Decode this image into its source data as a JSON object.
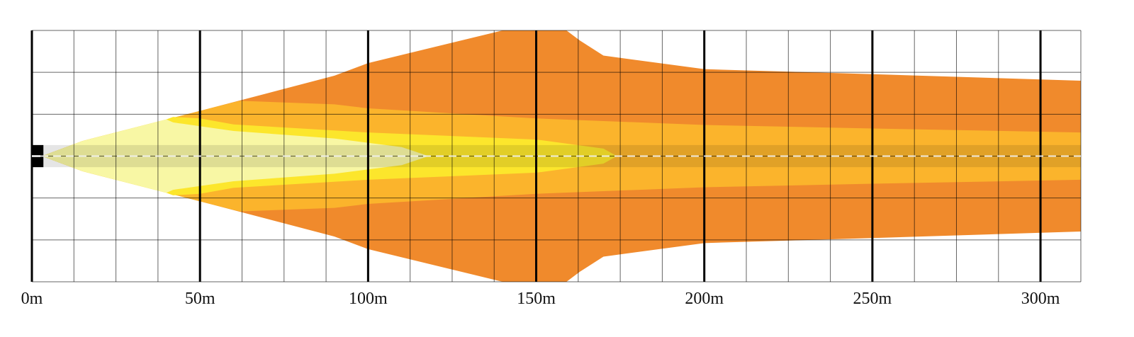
{
  "chart_data": {
    "type": "area",
    "title": "",
    "xlabel": "",
    "ylabel": "",
    "x_unit": "m",
    "xlim": [
      0,
      312
    ],
    "ylim": [
      -25,
      25
    ],
    "x_ticks": [
      {
        "value": 0,
        "label": "0m"
      },
      {
        "value": 50,
        "label": "50m"
      },
      {
        "value": 100,
        "label": "100m"
      },
      {
        "value": 150,
        "label": "150m"
      },
      {
        "value": 200,
        "label": "200m"
      },
      {
        "value": 250,
        "label": "250m"
      },
      {
        "value": 300,
        "label": "300m"
      }
    ],
    "grid": {
      "x_step": 12.5,
      "y_step": 8.33,
      "major_every": 4
    },
    "series": [
      {
        "color": "#F08A2C",
        "reach": 312,
        "profile": [
          [
            3,
            0
          ],
          [
            15,
            3
          ],
          [
            50,
            9
          ],
          [
            90,
            16
          ],
          [
            100,
            18.5
          ],
          [
            140,
            25
          ],
          [
            150,
            25
          ],
          [
            159,
            25
          ],
          [
            163,
            23
          ],
          [
            170,
            20
          ],
          [
            200,
            17.3
          ],
          [
            250,
            16.3
          ],
          [
            312,
            15
          ]
        ]
      },
      {
        "color": "#FBB42C",
        "reach": 312,
        "profile": [
          [
            3,
            0
          ],
          [
            15,
            3
          ],
          [
            50,
            9
          ],
          [
            60,
            10.7
          ],
          [
            62,
            11
          ],
          [
            90,
            10.3
          ],
          [
            100,
            9.5
          ],
          [
            150,
            7.5
          ],
          [
            200,
            6.2
          ],
          [
            250,
            5.5
          ],
          [
            312,
            4.7
          ]
        ]
      },
      {
        "color": "#FCE62C",
        "reach": 174,
        "profile": [
          [
            3,
            0
          ],
          [
            15,
            3
          ],
          [
            40,
            7.3
          ],
          [
            42,
            7.8
          ],
          [
            50,
            7.5
          ],
          [
            60,
            6.3
          ],
          [
            100,
            4.7
          ],
          [
            150,
            3.3
          ],
          [
            170,
            1.5
          ],
          [
            174,
            0
          ]
        ]
      },
      {
        "color": "#F8F7A4",
        "reach": 118,
        "profile": [
          [
            3,
            0
          ],
          [
            15,
            3
          ],
          [
            40,
            7.3
          ],
          [
            42,
            6.7
          ],
          [
            60,
            5
          ],
          [
            90,
            3.5
          ],
          [
            110,
            1.8
          ],
          [
            118,
            0
          ]
        ]
      }
    ],
    "center_band": {
      "half_width": 2.2,
      "color": "#000000",
      "opacity": 0.1
    },
    "mount_bar": {
      "x_start": 0,
      "x_end": 3,
      "half_width": 2.2,
      "color": "#000000"
    },
    "centerline": {
      "color": "#ffffff",
      "dashed": true
    }
  }
}
